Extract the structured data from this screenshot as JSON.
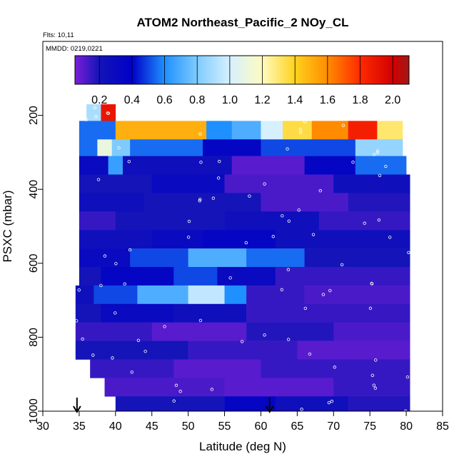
{
  "chart_data": {
    "type": "heatmap",
    "title": "ATOM2 Northeast_Pacific_2 NOy_CL",
    "flights_text": "Flts: 10,11",
    "dates_text": "MMDD: 0219,0221",
    "xlabel": "Latitude (deg N)",
    "ylabel": "PSXC (mbar)",
    "xlim": [
      30,
      85
    ],
    "ylim": [
      1000,
      0
    ],
    "x_ticks": [
      "30",
      "35",
      "40",
      "45",
      "50",
      "55",
      "60",
      "65",
      "70",
      "75",
      "80",
      "85"
    ],
    "y_ticks": [
      "200",
      "400",
      "600",
      "800",
      "1000"
    ],
    "colorbar": {
      "range": [
        0.05,
        2.1
      ],
      "ticks": [
        "0.2",
        "0.4",
        "0.6",
        "0.8",
        "1.0",
        "1.2",
        "1.4",
        "1.6",
        "1.8",
        "2.0"
      ],
      "stops": [
        {
          "v": 0.05,
          "c": "#7a1fd8"
        },
        {
          "v": 0.2,
          "c": "#1414b8"
        },
        {
          "v": 0.4,
          "c": "#0000c8"
        },
        {
          "v": 0.6,
          "c": "#1e90ff"
        },
        {
          "v": 0.8,
          "c": "#7ecbff"
        },
        {
          "v": 1.0,
          "c": "#d6f0ff"
        },
        {
          "v": 1.2,
          "c": "#fffbc0"
        },
        {
          "v": 1.4,
          "c": "#ffd21e"
        },
        {
          "v": 1.6,
          "c": "#ff8c00"
        },
        {
          "v": 1.8,
          "c": "#ff2a00"
        },
        {
          "v": 2.0,
          "c": "#d20000"
        },
        {
          "v": 2.1,
          "c": "#a01818"
        }
      ]
    },
    "arrows_latitude": [
      34.7,
      61.2
    ],
    "bands": [
      {
        "p_top": 170,
        "p_bot": 215,
        "segments": [
          [
            36.0,
            38.0,
            0.9
          ],
          [
            38.0,
            40.0,
            1.9
          ]
        ]
      },
      {
        "p_top": 215,
        "p_bot": 265,
        "segments": [
          [
            35.0,
            40.0,
            0.55
          ],
          [
            40.0,
            52.5,
            1.5
          ],
          [
            52.5,
            56.0,
            0.6
          ],
          [
            56.0,
            60.0,
            0.7
          ],
          [
            60.0,
            63.0,
            1.0
          ],
          [
            63.0,
            67.0,
            1.35
          ],
          [
            67.0,
            72.0,
            1.6
          ],
          [
            72.0,
            76.0,
            1.85
          ],
          [
            76.0,
            79.5,
            1.3
          ]
        ]
      },
      {
        "p_top": 265,
        "p_bot": 310,
        "segments": [
          [
            35.0,
            37.5,
            0.55
          ],
          [
            37.5,
            39.5,
            1.1
          ],
          [
            39.5,
            42.0,
            0.8
          ],
          [
            42.0,
            52.0,
            0.55
          ],
          [
            52.0,
            60.0,
            0.35
          ],
          [
            60.0,
            73.0,
            0.5
          ],
          [
            73.0,
            79.5,
            0.85
          ]
        ]
      },
      {
        "p_top": 310,
        "p_bot": 360,
        "segments": [
          [
            35.0,
            39.0,
            0.3
          ],
          [
            39.0,
            41.0,
            0.65
          ],
          [
            41.0,
            56.0,
            0.25
          ],
          [
            56.0,
            66.0,
            0.1
          ],
          [
            66.0,
            73.0,
            0.35
          ],
          [
            73.0,
            80.0,
            0.55
          ]
        ]
      },
      {
        "p_top": 360,
        "p_bot": 410,
        "segments": [
          [
            35.0,
            45.0,
            0.2
          ],
          [
            45.0,
            55.0,
            0.3
          ],
          [
            55.0,
            70.0,
            0.12
          ],
          [
            70.0,
            80.5,
            0.25
          ]
        ]
      },
      {
        "p_top": 410,
        "p_bot": 460,
        "segments": [
          [
            35.0,
            44.0,
            0.25
          ],
          [
            44.0,
            60.0,
            0.2
          ],
          [
            60.0,
            72.0,
            0.12
          ],
          [
            72.0,
            80.5,
            0.18
          ]
        ]
      },
      {
        "p_top": 460,
        "p_bot": 510,
        "segments": [
          [
            35.0,
            40.0,
            0.15
          ],
          [
            40.0,
            55.0,
            0.2
          ],
          [
            55.0,
            68.0,
            0.25
          ],
          [
            68.0,
            80.5,
            0.15
          ]
        ]
      },
      {
        "p_top": 510,
        "p_bot": 560,
        "segments": [
          [
            35.0,
            45.0,
            0.25
          ],
          [
            45.0,
            52.0,
            0.3
          ],
          [
            52.0,
            62.0,
            0.35
          ],
          [
            62.0,
            80.5,
            0.25
          ]
        ]
      },
      {
        "p_top": 560,
        "p_bot": 610,
        "segments": [
          [
            35.0,
            42.0,
            0.3
          ],
          [
            42.0,
            50.0,
            0.5
          ],
          [
            50.0,
            58.0,
            0.7
          ],
          [
            58.0,
            66.0,
            0.55
          ],
          [
            66.0,
            80.5,
            0.2
          ]
        ]
      },
      {
        "p_top": 610,
        "p_bot": 660,
        "segments": [
          [
            35.0,
            38.0,
            0.2
          ],
          [
            38.0,
            48.0,
            0.35
          ],
          [
            48.0,
            54.0,
            0.5
          ],
          [
            54.0,
            62.0,
            0.3
          ],
          [
            62.0,
            80.5,
            0.15
          ]
        ]
      },
      {
        "p_top": 660,
        "p_bot": 710,
        "segments": [
          [
            34.5,
            37.0,
            0.25
          ],
          [
            37.0,
            43.0,
            0.5
          ],
          [
            43.0,
            50.0,
            0.7
          ],
          [
            50.0,
            55.0,
            0.95
          ],
          [
            55.0,
            58.0,
            0.6
          ],
          [
            58.0,
            66.0,
            0.15
          ],
          [
            66.0,
            80.5,
            0.12
          ]
        ]
      },
      {
        "p_top": 710,
        "p_bot": 760,
        "segments": [
          [
            34.5,
            38.0,
            0.2
          ],
          [
            38.0,
            48.0,
            0.3
          ],
          [
            48.0,
            58.0,
            0.25
          ],
          [
            58.0,
            80.5,
            0.15
          ]
        ]
      },
      {
        "p_top": 760,
        "p_bot": 810,
        "segments": [
          [
            34.5,
            45.0,
            0.15
          ],
          [
            45.0,
            58.0,
            0.1
          ],
          [
            58.0,
            70.0,
            0.18
          ],
          [
            70.0,
            80.5,
            0.12
          ]
        ]
      },
      {
        "p_top": 810,
        "p_bot": 860,
        "segments": [
          [
            34.5,
            50.0,
            0.2
          ],
          [
            50.0,
            65.0,
            0.15
          ],
          [
            65.0,
            80.5,
            0.1
          ]
        ]
      },
      {
        "p_top": 860,
        "p_bot": 910,
        "segments": [
          [
            36.5,
            48.0,
            0.15
          ],
          [
            48.0,
            60.0,
            0.1
          ],
          [
            60.0,
            80.5,
            0.15
          ]
        ]
      },
      {
        "p_top": 910,
        "p_bot": 960,
        "segments": [
          [
            38.5,
            55.0,
            0.12
          ],
          [
            55.0,
            70.0,
            0.1
          ],
          [
            70.0,
            80.5,
            0.15
          ]
        ]
      },
      {
        "p_top": 960,
        "p_bot": 1000,
        "segments": [
          [
            40.0,
            55.0,
            0.2
          ],
          [
            55.0,
            62.0,
            0.35
          ],
          [
            62.0,
            72.0,
            0.25
          ],
          [
            72.0,
            80.5,
            0.18
          ]
        ]
      }
    ]
  }
}
